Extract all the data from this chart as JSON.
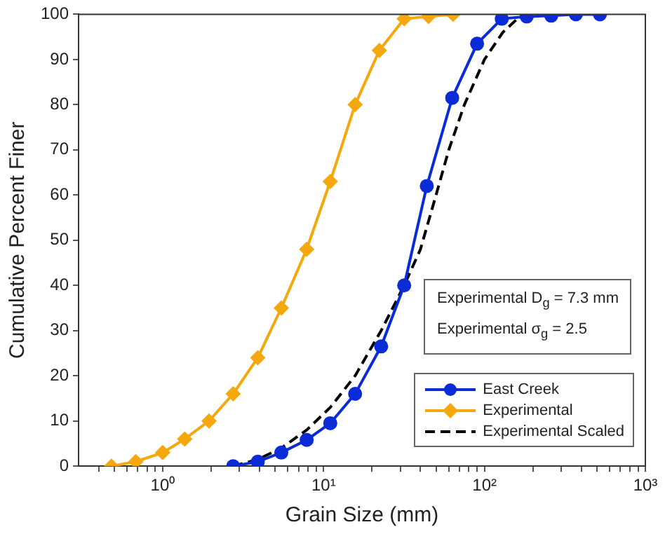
{
  "chart_data": {
    "type": "line",
    "xlabel": "Grain Size (mm)",
    "ylabel": "Cumulative Percent Finer",
    "log": "x",
    "xlim": [
      0.3,
      1000
    ],
    "xticks": [
      {
        "value": 0.4,
        "label": null
      },
      {
        "value": 0.5,
        "label": null
      },
      {
        "value": 0.6,
        "label": null
      },
      {
        "value": 0.7,
        "label": null
      },
      {
        "value": 0.8,
        "label": null
      },
      {
        "value": 0.9,
        "label": null
      },
      {
        "value": 1,
        "label": "10⁰"
      },
      {
        "value": 2,
        "label": null
      },
      {
        "value": 3,
        "label": null
      },
      {
        "value": 4,
        "label": null
      },
      {
        "value": 5,
        "label": null
      },
      {
        "value": 6,
        "label": null
      },
      {
        "value": 7,
        "label": null
      },
      {
        "value": 8,
        "label": null
      },
      {
        "value": 9,
        "label": null
      },
      {
        "value": 10,
        "label": "10¹"
      },
      {
        "value": 20,
        "label": null
      },
      {
        "value": 30,
        "label": null
      },
      {
        "value": 40,
        "label": null
      },
      {
        "value": 50,
        "label": null
      },
      {
        "value": 60,
        "label": null
      },
      {
        "value": 70,
        "label": null
      },
      {
        "value": 80,
        "label": null
      },
      {
        "value": 90,
        "label": null
      },
      {
        "value": 100,
        "label": "10²"
      },
      {
        "value": 200,
        "label": null
      },
      {
        "value": 300,
        "label": null
      },
      {
        "value": 400,
        "label": null
      },
      {
        "value": 500,
        "label": null
      },
      {
        "value": 600,
        "label": null
      },
      {
        "value": 700,
        "label": null
      },
      {
        "value": 800,
        "label": null
      },
      {
        "value": 900,
        "label": null
      },
      {
        "value": 1000,
        "label": "10³"
      }
    ],
    "ylim": [
      0,
      100
    ],
    "yticks": [
      0,
      10,
      20,
      30,
      40,
      50,
      60,
      70,
      80,
      90,
      100
    ],
    "grid": false,
    "legend": "bottom right",
    "annotations": [
      "Experimental D$_{g}$ = 7.3 mm",
      "Experimental σ$_{g}$ = 2.5"
    ],
    "series": [
      {
        "name": "East Creek",
        "color": "#0a2bd6",
        "marker": "circle",
        "line_style": "solid",
        "x": [
          2.74,
          3.9,
          5.46,
          7.85,
          11,
          15.7,
          22.8,
          31.7,
          43.8,
          63,
          90,
          128,
          183,
          260,
          370,
          522
        ],
        "values": [
          0,
          1,
          3,
          5.8,
          9.5,
          16,
          26.5,
          40,
          62,
          81.5,
          93.5,
          99,
          99.5,
          99.7,
          100,
          100
        ]
      },
      {
        "name": "Experimental",
        "color": "#f5a80c",
        "marker": "diamond",
        "line_style": "solid",
        "x": [
          0.48,
          0.68,
          1,
          1.37,
          1.94,
          2.74,
          3.9,
          5.46,
          7.85,
          11,
          15.7,
          22.2,
          31.7,
          44.9,
          63.8
        ],
        "values": [
          0,
          1,
          3,
          6,
          10,
          16,
          24,
          35,
          48,
          63,
          80,
          92,
          99,
          99.5,
          100
        ]
      },
      {
        "name": "Experimental Scaled",
        "color": "#000000",
        "marker": "none",
        "line_style": "dashed",
        "x": [
          2.74,
          3.9,
          5.46,
          7.85,
          11,
          15.7,
          22.8,
          31.7,
          40,
          50,
          60,
          75,
          100,
          130,
          160,
          200,
          250
        ],
        "values": [
          0,
          1.5,
          4,
          8,
          13,
          20,
          30,
          40,
          48,
          60,
          70,
          80,
          90,
          96,
          99,
          99.8,
          100
        ]
      }
    ]
  }
}
